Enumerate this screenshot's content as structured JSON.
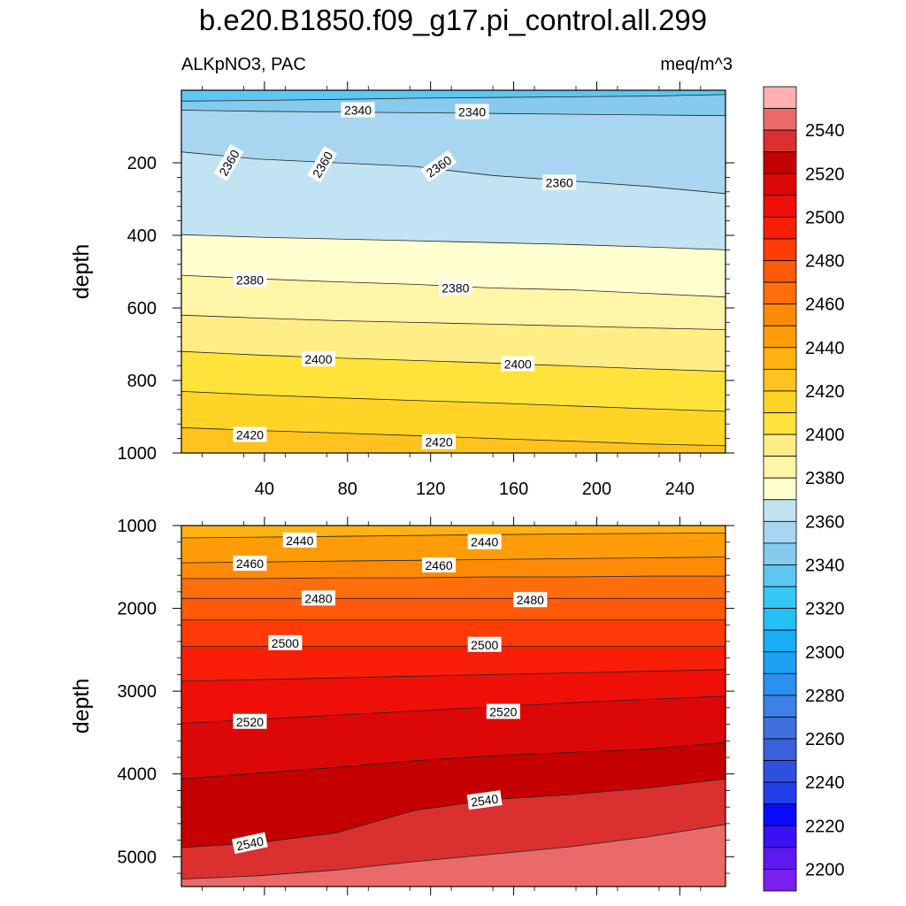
{
  "header": {
    "title": "b.e20.B1850.f09_g17.pi_control.all.299",
    "left_label": "ALKpNO3, PAC",
    "right_label": "meq/m^3"
  },
  "chart_data": {
    "type": "heatmap",
    "variable": "ALKpNO3",
    "units": "meq/m^3",
    "panels": [
      {
        "name": "upper",
        "ylabel": "depth",
        "ylim": [
          1000,
          0
        ],
        "xlim": [
          0,
          262
        ],
        "xticks": [
          40,
          80,
          120,
          160,
          200,
          240
        ],
        "yticks": [
          200,
          400,
          600,
          800,
          1000
        ],
        "bands": [
          {
            "level": 2330,
            "top": [
              0,
              0,
              0,
              0,
              0,
              0,
              0,
              0
            ],
            "bottom": [
              30,
              28,
              25,
              22,
              20,
              18,
              16,
              12
            ]
          },
          {
            "level": 2340,
            "top": [
              30,
              28,
              25,
              22,
              20,
              18,
              16,
              12
            ],
            "bottom": [
              55,
              58,
              60,
              62,
              64,
              66,
              68,
              70
            ]
          },
          {
            "level": 2350,
            "top": [
              55,
              58,
              60,
              62,
              64,
              66,
              68,
              70
            ],
            "bottom": [
              170,
              190,
              200,
              210,
              235,
              250,
              265,
              285
            ]
          },
          {
            "level": 2360,
            "top": [
              170,
              190,
              200,
              210,
              235,
              250,
              265,
              285
            ],
            "bottom": [
              398,
              405,
              410,
              415,
              420,
              425,
              432,
              440
            ]
          },
          {
            "level": 2370,
            "top": [
              398,
              405,
              410,
              415,
              420,
              425,
              432,
              440
            ],
            "bottom": [
              510,
              520,
              528,
              535,
              545,
              550,
              560,
              570
            ]
          },
          {
            "level": 2380,
            "top": [
              510,
              520,
              528,
              535,
              545,
              550,
              560,
              570
            ],
            "bottom": [
              620,
              628,
              635,
              640,
              645,
              650,
              655,
              660
            ]
          },
          {
            "level": 2390,
            "top": [
              620,
              628,
              635,
              640,
              645,
              650,
              655,
              660
            ],
            "bottom": [
              720,
              730,
              738,
              745,
              752,
              760,
              768,
              775
            ]
          },
          {
            "level": 2400,
            "top": [
              720,
              730,
              738,
              745,
              752,
              760,
              768,
              775
            ],
            "bottom": [
              830,
              840,
              848,
              855,
              862,
              870,
              878,
              885
            ]
          },
          {
            "level": 2410,
            "top": [
              830,
              840,
              848,
              855,
              862,
              870,
              878,
              885
            ],
            "bottom": [
              930,
              938,
              945,
              952,
              960,
              967,
              975,
              980
            ]
          },
          {
            "level": 2420,
            "top": [
              930,
              938,
              945,
              952,
              960,
              967,
              975,
              980
            ],
            "bottom": [
              1000,
              1000,
              1000,
              1000,
              1000,
              1000,
              1000,
              1000
            ]
          }
        ],
        "contour_labels": [
          {
            "text": "2340",
            "x": 85,
            "y": 55
          },
          {
            "text": "2340",
            "x": 140,
            "y": 60
          },
          {
            "text": "2360",
            "x": 23,
            "y": 200,
            "angle": -60
          },
          {
            "text": "2360",
            "x": 68,
            "y": 205,
            "angle": -60
          },
          {
            "text": "2360",
            "x": 124,
            "y": 210,
            "angle": -35
          },
          {
            "text": "2360",
            "x": 182,
            "y": 255
          },
          {
            "text": "2380",
            "x": 33,
            "y": 523
          },
          {
            "text": "2380",
            "x": 132,
            "y": 545
          },
          {
            "text": "2400",
            "x": 66,
            "y": 742
          },
          {
            "text": "2400",
            "x": 162,
            "y": 755
          },
          {
            "text": "2420",
            "x": 33,
            "y": 950
          },
          {
            "text": "2420",
            "x": 124,
            "y": 970
          }
        ]
      },
      {
        "name": "lower",
        "ylabel": "depth",
        "ylim": [
          5360,
          1000
        ],
        "xlim": [
          0,
          262
        ],
        "xticks": [
          40,
          80,
          120,
          160,
          200,
          240
        ],
        "yticks": [
          1000,
          2000,
          3000,
          4000,
          5000
        ],
        "bands": [
          {
            "level": 2430,
            "top": [
              1000,
              1000,
              1000,
              1000,
              1000,
              1000,
              1000,
              1000
            ],
            "bottom": [
              1150,
              1140,
              1130,
              1120,
              1110,
              1100,
              1095,
              1090
            ]
          },
          {
            "level": 2440,
            "top": [
              1150,
              1140,
              1130,
              1120,
              1110,
              1100,
              1095,
              1090
            ],
            "bottom": [
              1450,
              1440,
              1430,
              1420,
              1410,
              1400,
              1390,
              1380
            ]
          },
          {
            "level": 2450,
            "top": [
              1450,
              1440,
              1430,
              1420,
              1410,
              1400,
              1390,
              1380
            ],
            "bottom": [
              1640,
              1640,
              1630,
              1630,
              1620,
              1620,
              1610,
              1610
            ]
          },
          {
            "level": 2460,
            "top": [
              1640,
              1640,
              1630,
              1630,
              1620,
              1620,
              1610,
              1610
            ],
            "bottom": [
              1880,
              1880,
              1880,
              1880,
              1880,
              1880,
              1880,
              1880
            ]
          },
          {
            "level": 2470,
            "top": [
              1880,
              1880,
              1880,
              1880,
              1880,
              1880,
              1880,
              1880
            ],
            "bottom": [
              2140,
              2140,
              2140,
              2140,
              2140,
              2140,
              2140,
              2140
            ]
          },
          {
            "level": 2480,
            "top": [
              2140,
              2140,
              2140,
              2140,
              2140,
              2140,
              2140,
              2140
            ],
            "bottom": [
              2460,
              2460,
              2460,
              2460,
              2460,
              2460,
              2460,
              2460
            ]
          },
          {
            "level": 2490,
            "top": [
              2460,
              2460,
              2460,
              2460,
              2460,
              2460,
              2460,
              2460
            ],
            "bottom": [
              2880,
              2860,
              2840,
              2820,
              2800,
              2780,
              2760,
              2740
            ]
          },
          {
            "level": 2500,
            "top": [
              2880,
              2860,
              2840,
              2820,
              2800,
              2780,
              2760,
              2740
            ],
            "bottom": [
              3390,
              3340,
              3290,
              3240,
              3190,
              3140,
              3100,
              3060
            ]
          },
          {
            "level": 2510,
            "top": [
              3390,
              3340,
              3290,
              3240,
              3190,
              3140,
              3100,
              3060
            ],
            "bottom": [
              4060,
              3990,
              3920,
              3840,
              3780,
              3740,
              3700,
              3620
            ]
          },
          {
            "level": 2520,
            "top": [
              4060,
              3990,
              3920,
              3840,
              3780,
              3740,
              3700,
              3620
            ],
            "bottom": [
              4890,
              4830,
              4710,
              4440,
              4310,
              4250,
              4170,
              4060
            ]
          },
          {
            "level": 2530,
            "top": [
              4890,
              4830,
              4710,
              4440,
              4310,
              4250,
              4170,
              4060
            ],
            "bottom": [
              5270,
              5230,
              5160,
              5060,
              4970,
              4880,
              4760,
              4610
            ]
          },
          {
            "level": 2540,
            "top": [
              5270,
              5230,
              5160,
              5060,
              4970,
              4880,
              4760,
              4610
            ],
            "bottom": [
              5360,
              5360,
              5360,
              5360,
              5360,
              5360,
              5360,
              5360
            ]
          }
        ],
        "contour_labels": [
          {
            "text": "2440",
            "x": 57,
            "y": 1180
          },
          {
            "text": "2440",
            "x": 146,
            "y": 1200
          },
          {
            "text": "2460",
            "x": 33,
            "y": 1460
          },
          {
            "text": "2460",
            "x": 124,
            "y": 1480
          },
          {
            "text": "2480",
            "x": 66,
            "y": 1880
          },
          {
            "text": "2480",
            "x": 168,
            "y": 1900
          },
          {
            "text": "2500",
            "x": 50,
            "y": 2420
          },
          {
            "text": "2500",
            "x": 146,
            "y": 2440
          },
          {
            "text": "2520",
            "x": 33,
            "y": 3370
          },
          {
            "text": "2520",
            "x": 155,
            "y": 3250
          },
          {
            "text": "2540",
            "x": 33,
            "y": 4840,
            "angle": -12
          },
          {
            "text": "2540",
            "x": 146,
            "y": 4320,
            "angle": -8
          }
        ]
      }
    ],
    "colorbar": {
      "levels": [
        2190,
        2200,
        2210,
        2220,
        2230,
        2240,
        2250,
        2260,
        2270,
        2280,
        2290,
        2300,
        2310,
        2320,
        2330,
        2340,
        2350,
        2360,
        2370,
        2380,
        2390,
        2400,
        2410,
        2420,
        2430,
        2440,
        2450,
        2460,
        2470,
        2480,
        2490,
        2500,
        2510,
        2520,
        2530,
        2540,
        2550
      ],
      "labels": [
        "2200",
        "2220",
        "2240",
        "2260",
        "2280",
        "2300",
        "2320",
        "2340",
        "2360",
        "2380",
        "2400",
        "2420",
        "2440",
        "2460",
        "2480",
        "2500",
        "2520",
        "2540"
      ],
      "colors": {
        "2190": "#7a1ff0",
        "2200": "#5e18f0",
        "2210": "#3a10f4",
        "2220": "#0a0af8",
        "2230": "#2240e8",
        "2240": "#2e50e0",
        "2250": "#3a60de",
        "2260": "#4070dc",
        "2270": "#3c80e8",
        "2280": "#2c90f0",
        "2290": "#1ea0f4",
        "2300": "#18aef4",
        "2310": "#22c0f4",
        "2320": "#36c8f4",
        "2330": "#5ec6f2",
        "2340": "#86caee",
        "2350": "#a8d6f0",
        "2360": "#c2e4f2",
        "2370": "#ffffd0",
        "2380": "#fff5a6",
        "2390": "#ffed86",
        "2400": "#ffe33a",
        "2410": "#ffd426",
        "2420": "#ffc21e",
        "2430": "#ffb212",
        "2440": "#ff9c08",
        "2450": "#ff8a08",
        "2460": "#ff6e0a",
        "2470": "#ff5a0a",
        "2480": "#ff3c08",
        "2490": "#f81e08",
        "2500": "#ee1008",
        "2510": "#dc0808",
        "2520": "#c40000",
        "2530": "#da3030",
        "2540": "#ea6a6a",
        "2550": "#ffb0b0"
      }
    }
  }
}
